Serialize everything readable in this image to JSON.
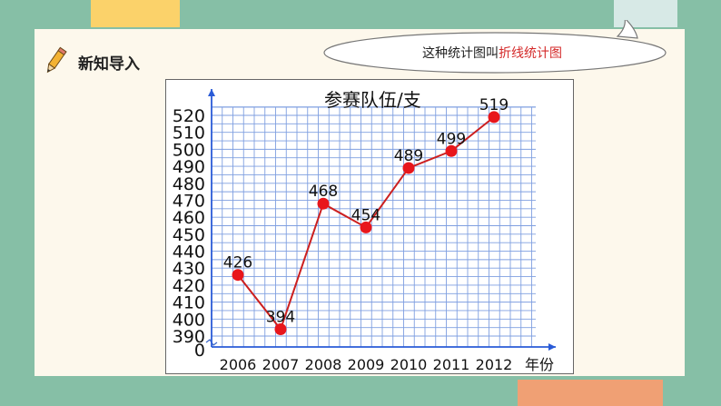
{
  "section": {
    "title": "新知导入"
  },
  "bubble": {
    "prefix": "这种统计图叫",
    "highlight": "折线统计图"
  },
  "chart_data": {
    "type": "line",
    "ylabel": "参赛队伍/支",
    "xlabel": "年份",
    "x": [
      "2006",
      "2007",
      "2008",
      "2009",
      "2010",
      "2011",
      "2012"
    ],
    "values": [
      426,
      394,
      468,
      454,
      489,
      499,
      519
    ],
    "data_labels": [
      "426",
      "394",
      "468",
      "454",
      "489",
      "499",
      "519"
    ],
    "y_ticks": [
      390,
      400,
      410,
      420,
      430,
      440,
      450,
      460,
      470,
      480,
      490,
      500,
      510,
      520
    ],
    "y_origin_label": "0",
    "ylim": [
      390,
      520
    ],
    "grid": true,
    "line_color": "#cc1f1f",
    "marker_color": "#e8161b",
    "grid_color": "#7f9fe0"
  }
}
